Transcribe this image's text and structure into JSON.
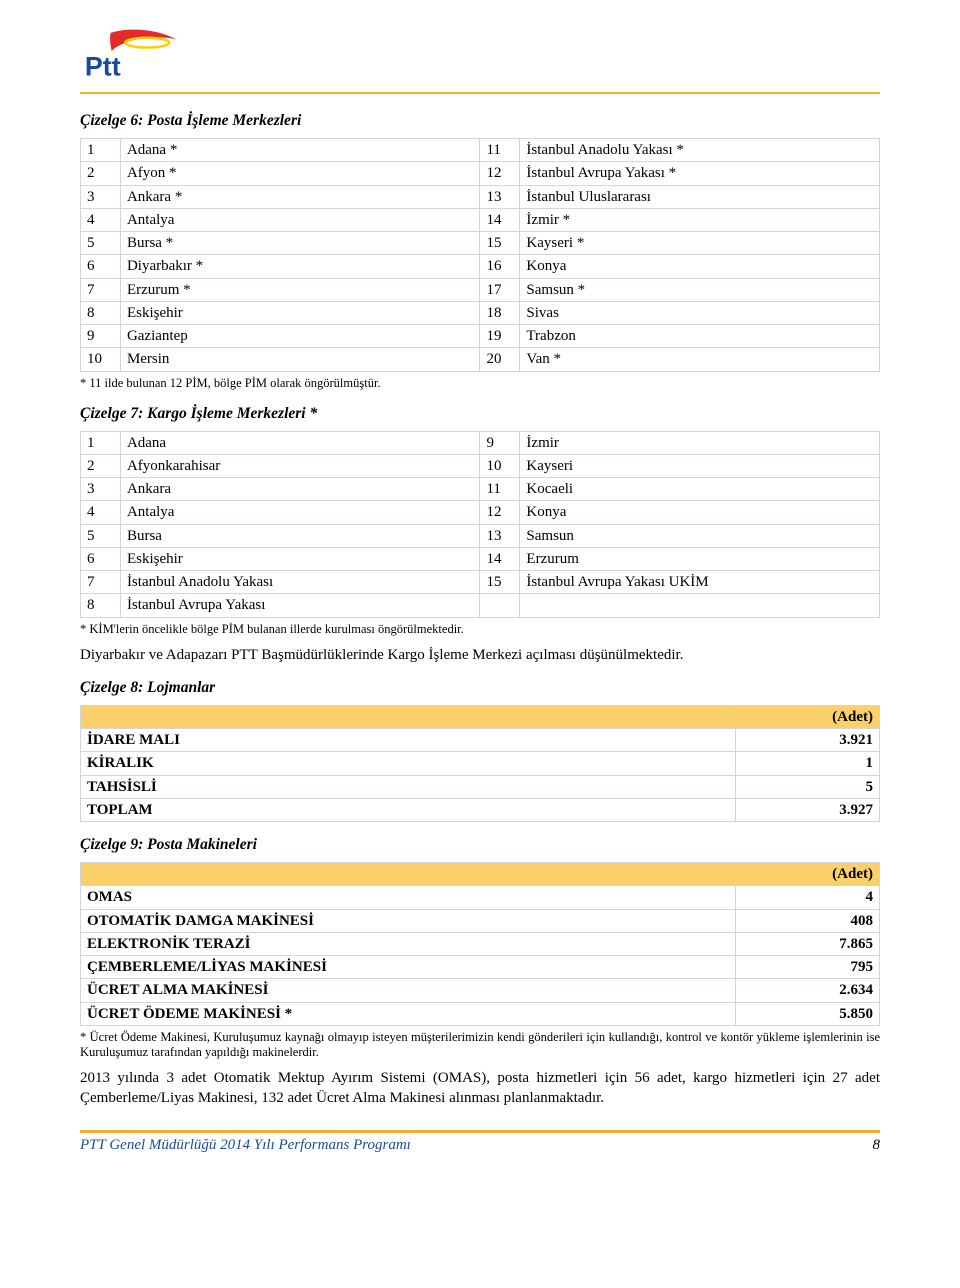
{
  "logo_text": "Ptt",
  "sections": {
    "t6": {
      "title": "Çizelge 6: Posta İşleme Merkezleri",
      "rows": [
        [
          "1",
          "Adana *",
          "11",
          "İstanbul Anadolu Yakası *"
        ],
        [
          "2",
          "Afyon *",
          "12",
          "İstanbul Avrupa Yakası *"
        ],
        [
          "3",
          "Ankara *",
          "13",
          "İstanbul Uluslararası"
        ],
        [
          "4",
          "Antalya",
          "14",
          "İzmir *"
        ],
        [
          "5",
          "Bursa *",
          "15",
          "Kayseri *"
        ],
        [
          "6",
          "Diyarbakır *",
          "16",
          "Konya"
        ],
        [
          "7",
          "Erzurum *",
          "17",
          "Samsun *"
        ],
        [
          "8",
          "Eskişehir",
          "18",
          "Sivas"
        ],
        [
          "9",
          "Gaziantep",
          "19",
          "Trabzon"
        ],
        [
          "10",
          "Mersin",
          "20",
          "Van *"
        ]
      ],
      "note": "* 11 ilde bulunan 12 PİM, bölge PİM olarak öngörülmüştür."
    },
    "t7": {
      "title": "Çizelge 7: Kargo İşleme Merkezleri *",
      "rows": [
        [
          "1",
          "Adana",
          "9",
          "İzmir"
        ],
        [
          "2",
          "Afyonkarahisar",
          "10",
          "Kayseri"
        ],
        [
          "3",
          "Ankara",
          "11",
          "Kocaeli"
        ],
        [
          "4",
          "Antalya",
          "12",
          "Konya"
        ],
        [
          "5",
          "Bursa",
          "13",
          "Samsun"
        ],
        [
          "6",
          "Eskişehir",
          "14",
          "Erzurum"
        ],
        [
          "7",
          "İstanbul Anadolu Yakası",
          "15",
          "İstanbul Avrupa Yakası UKİM"
        ],
        [
          "8",
          "İstanbul Avrupa Yakası",
          "",
          ""
        ]
      ],
      "note": "* KİM'lerin öncelikle bölge PİM bulanan illerde kurulması öngörülmektedir."
    },
    "para1": "Diyarbakır ve Adapazarı PTT Başmüdürlüklerinde Kargo İşleme Merkezi açılması düşünülmektedir.",
    "t8": {
      "title": "Çizelge 8: Lojmanlar",
      "header": "(Adet)",
      "rows": [
        [
          "İDARE MALI",
          "3.921"
        ],
        [
          "KİRALIK",
          "1"
        ],
        [
          "TAHSİSLİ",
          "5"
        ],
        [
          "TOPLAM",
          "3.927"
        ]
      ]
    },
    "t9": {
      "title": "Çizelge 9: Posta Makineleri",
      "header": "(Adet)",
      "rows": [
        [
          "OMAS",
          "4"
        ],
        [
          "OTOMATİK DAMGA MAKİNESİ",
          "408"
        ],
        [
          "ELEKTRONİK TERAZİ",
          "7.865"
        ],
        [
          "ÇEMBERLEME/LİYAS MAKİNESİ",
          "795"
        ],
        [
          "ÜCRET ALMA MAKİNESİ",
          "2.634"
        ],
        [
          "ÜCRET ÖDEME MAKİNESİ *",
          "5.850"
        ]
      ],
      "note": "* Ücret Ödeme Makinesi, Kuruluşumuz kaynağı olmayıp isteyen müşterilerimizin kendi gönderileri için kullandığı, kontrol ve kontör yükleme işlemlerinin ise Kuruluşumuz tarafından yapıldığı makinelerdir."
    },
    "para2": "2013 yılında 3 adet Otomatik Mektup Ayırım Sistemi (OMAS), posta hizmetleri için 56 adet, kargo hizmetleri için 27 adet Çemberleme/Liyas Makinesi, 132 adet Ücret Alma Makinesi alınması planlanmaktadır."
  },
  "footer": {
    "left": "PTT Genel Müdürlüğü 2014 Yılı Performans Programı",
    "page": "8"
  },
  "colors": {
    "accent": "#f0ae35",
    "header_bg": "#fbcf6a",
    "border": "#cfd6df",
    "footer_text": "#1a4aa0"
  }
}
